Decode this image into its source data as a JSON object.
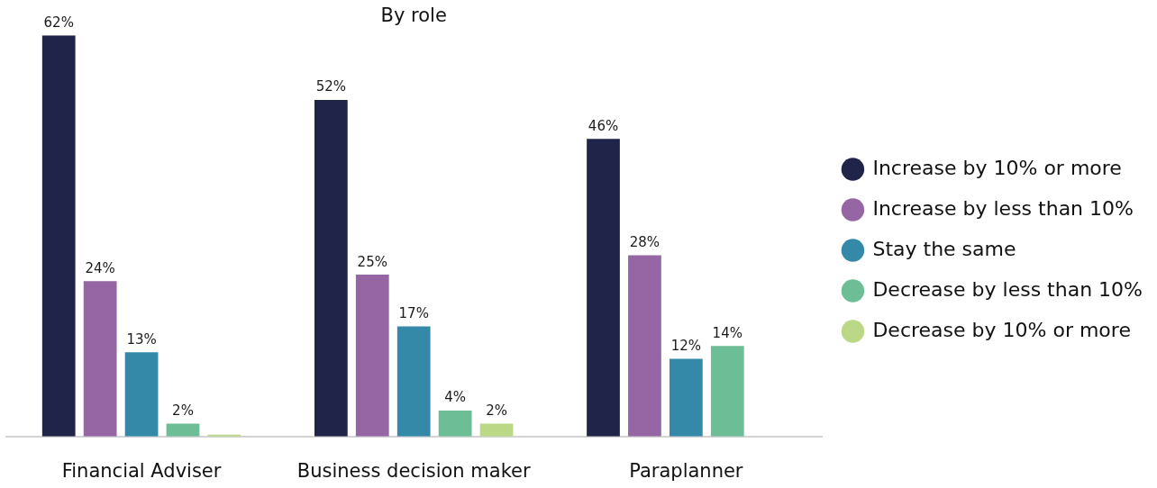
{
  "chart_data": {
    "type": "bar",
    "title": "By role",
    "categories": [
      "Financial Adviser",
      "Business decision maker",
      "Paraplanner"
    ],
    "series": [
      {
        "name": "Increase by 10% or more",
        "color": "#1f2448",
        "values": [
          62,
          52,
          46
        ],
        "value_labels": [
          "62%",
          "52%",
          "46%"
        ]
      },
      {
        "name": "Increase by less than 10%",
        "color": "#9566a3",
        "values": [
          24,
          25,
          28
        ],
        "value_labels": [
          "24%",
          "25%",
          "28%"
        ]
      },
      {
        "name": "Stay the same",
        "color": "#3489a9",
        "values": [
          13,
          17,
          12
        ],
        "value_labels": [
          "13%",
          "17%",
          "12%"
        ]
      },
      {
        "name": "Decrease by less than 10%",
        "color": "#6dbd96",
        "values": [
          2,
          4,
          14
        ],
        "value_labels": [
          "2%",
          "4%",
          "14%"
        ]
      },
      {
        "name": "Decrease by 10% or more",
        "color": "#bad885",
        "values": [
          0.3,
          2,
          null
        ],
        "value_labels": [
          null,
          "2%",
          null
        ]
      }
    ],
    "legend": "right"
  }
}
